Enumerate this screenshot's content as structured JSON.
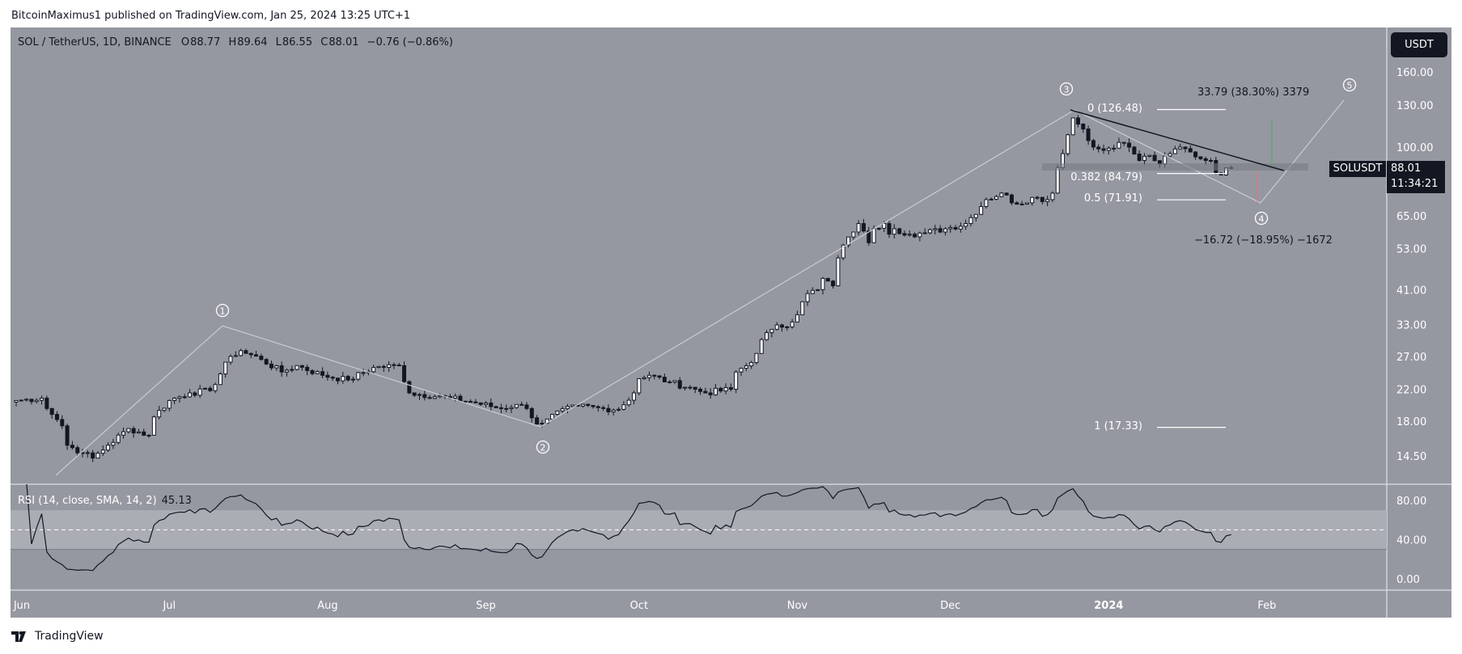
{
  "header": {
    "published": "BitcoinMaximus1 published on TradingView.com, Jan 25, 2024 13:25 UTC+1"
  },
  "legend": {
    "symbol": "SOL / TetherUS, 1D, BINANCE",
    "o_label": "O",
    "open": "88.77",
    "h_label": "H",
    "high": "89.64",
    "l_label": "L",
    "low": "86.55",
    "c_label": "C",
    "close": "88.01",
    "change": "−0.76 (−0.86%)"
  },
  "currency_button": "USDT",
  "symbol_tag": "SOLUSDT",
  "price_tag": {
    "price": "88.01",
    "countdown": "11:34:21"
  },
  "rsi_legend": {
    "label": "RSI (14, close, SMA, 14, 2)",
    "value": "45.13"
  },
  "fib_levels": [
    {
      "label": "0 (126.48)",
      "price": 126.48
    },
    {
      "label": "0.382 (84.79)",
      "price": 84.79
    },
    {
      "label": "0.5 (71.91)",
      "price": 71.91
    },
    {
      "label": "1 (17.33)",
      "price": 17.33
    }
  ],
  "measure": {
    "up_text": "33.79 (38.30%) 3379",
    "down_text": "−16.72 (−18.95%) −1672"
  },
  "waves": [
    "1",
    "2",
    "3",
    "4",
    "5"
  ],
  "footer": {
    "brand": "TradingView"
  },
  "colors": {
    "panel": "#9598a1",
    "rsi_band": "#abadb5",
    "up": "#ffffff",
    "down": "#131722",
    "trend": "#131722",
    "wave": "#c9cbd1",
    "green": "#4caf50",
    "red": "#e57373"
  },
  "chart_data": {
    "type": "candlestick",
    "title": "SOL / TetherUS, 1D, BINANCE",
    "scale": "log",
    "start_date": "2023-06-01",
    "close_waypoints_day_offset": [
      [
        0,
        20.5
      ],
      [
        5,
        20.8
      ],
      [
        6,
        19.5
      ],
      [
        8,
        18.2
      ],
      [
        9,
        17.5
      ],
      [
        10,
        15.5
      ],
      [
        13,
        14.8
      ],
      [
        15,
        14.3
      ],
      [
        18,
        15.5
      ],
      [
        22,
        17.2
      ],
      [
        26,
        16.5
      ],
      [
        27,
        18.5
      ],
      [
        30,
        20.5
      ],
      [
        34,
        21.5
      ],
      [
        38,
        21.8
      ],
      [
        42,
        27
      ],
      [
        44,
        28
      ],
      [
        48,
        26.5
      ],
      [
        52,
        24.5
      ],
      [
        55,
        25.5
      ],
      [
        60,
        24
      ],
      [
        65,
        23.3
      ],
      [
        70,
        25.2
      ],
      [
        75,
        25.5
      ],
      [
        77,
        21.5
      ],
      [
        85,
        20.8
      ],
      [
        90,
        20.2
      ],
      [
        95,
        19.5
      ],
      [
        98,
        20
      ],
      [
        100,
        19.5
      ],
      [
        101,
        18.4
      ],
      [
        102,
        17.7
      ],
      [
        105,
        18.8
      ],
      [
        110,
        19.8
      ],
      [
        115,
        19.5
      ],
      [
        118,
        19.4
      ],
      [
        121,
        21.5
      ],
      [
        122,
        23.5
      ],
      [
        124,
        24
      ],
      [
        128,
        23
      ],
      [
        133,
        22
      ],
      [
        135,
        21.5
      ],
      [
        140,
        22
      ],
      [
        141,
        24.5
      ],
      [
        144,
        26
      ],
      [
        146,
        30
      ],
      [
        148,
        32
      ],
      [
        152,
        33.5
      ],
      [
        155,
        40
      ],
      [
        157,
        41
      ],
      [
        158,
        44
      ],
      [
        160,
        42
      ],
      [
        161,
        50
      ],
      [
        163,
        57
      ],
      [
        165,
        62
      ],
      [
        167,
        55
      ],
      [
        168,
        60
      ],
      [
        170,
        62
      ],
      [
        171,
        58
      ],
      [
        172,
        60
      ],
      [
        175,
        58
      ],
      [
        178,
        58.5
      ],
      [
        182,
        60
      ],
      [
        186,
        62
      ],
      [
        190,
        72
      ],
      [
        193,
        75
      ],
      [
        196,
        70
      ],
      [
        199,
        73
      ],
      [
        202,
        72
      ],
      [
        203,
        75
      ],
      [
        204,
        88
      ],
      [
        205,
        96
      ],
      [
        206,
        108
      ],
      [
        207,
        120
      ],
      [
        209,
        112
      ],
      [
        211,
        100
      ],
      [
        213,
        98
      ],
      [
        216,
        103
      ],
      [
        218,
        100
      ],
      [
        220,
        92
      ],
      [
        222,
        95
      ],
      [
        224,
        90
      ],
      [
        226,
        96
      ],
      [
        228,
        100
      ],
      [
        230,
        97
      ],
      [
        232,
        93
      ],
      [
        234,
        92
      ],
      [
        235,
        85
      ],
      [
        236,
        84
      ],
      [
        237,
        87.8
      ],
      [
        238,
        88.01
      ]
    ],
    "y_ticks": [
      160,
      130,
      100,
      65,
      53,
      41,
      33,
      27,
      22,
      18,
      14.5
    ],
    "y_tick_labels": [
      "160.00",
      "130.00",
      "100.00",
      "65.00",
      "53.00",
      "41.00",
      "33.00",
      "27.00",
      "22.00",
      "18.00",
      "14.50"
    ],
    "x_ticks": [
      {
        "label": "Jun",
        "day": 0
      },
      {
        "label": "Jul",
        "day": 30
      },
      {
        "label": "Aug",
        "day": 61
      },
      {
        "label": "Sep",
        "day": 92
      },
      {
        "label": "Oct",
        "day": 122
      },
      {
        "label": "Nov",
        "day": 153
      },
      {
        "label": "Dec",
        "day": 183
      },
      {
        "label": "2024",
        "day": 214
      },
      {
        "label": "Feb",
        "day": 245
      }
    ],
    "rsi": {
      "period": 14,
      "overbought": 70,
      "oversold": 30,
      "mid": 50,
      "ticks": [
        80,
        40,
        0
      ],
      "tick_labels": [
        "80.00",
        "40.00",
        "0.00"
      ],
      "last": 45.13
    }
  }
}
